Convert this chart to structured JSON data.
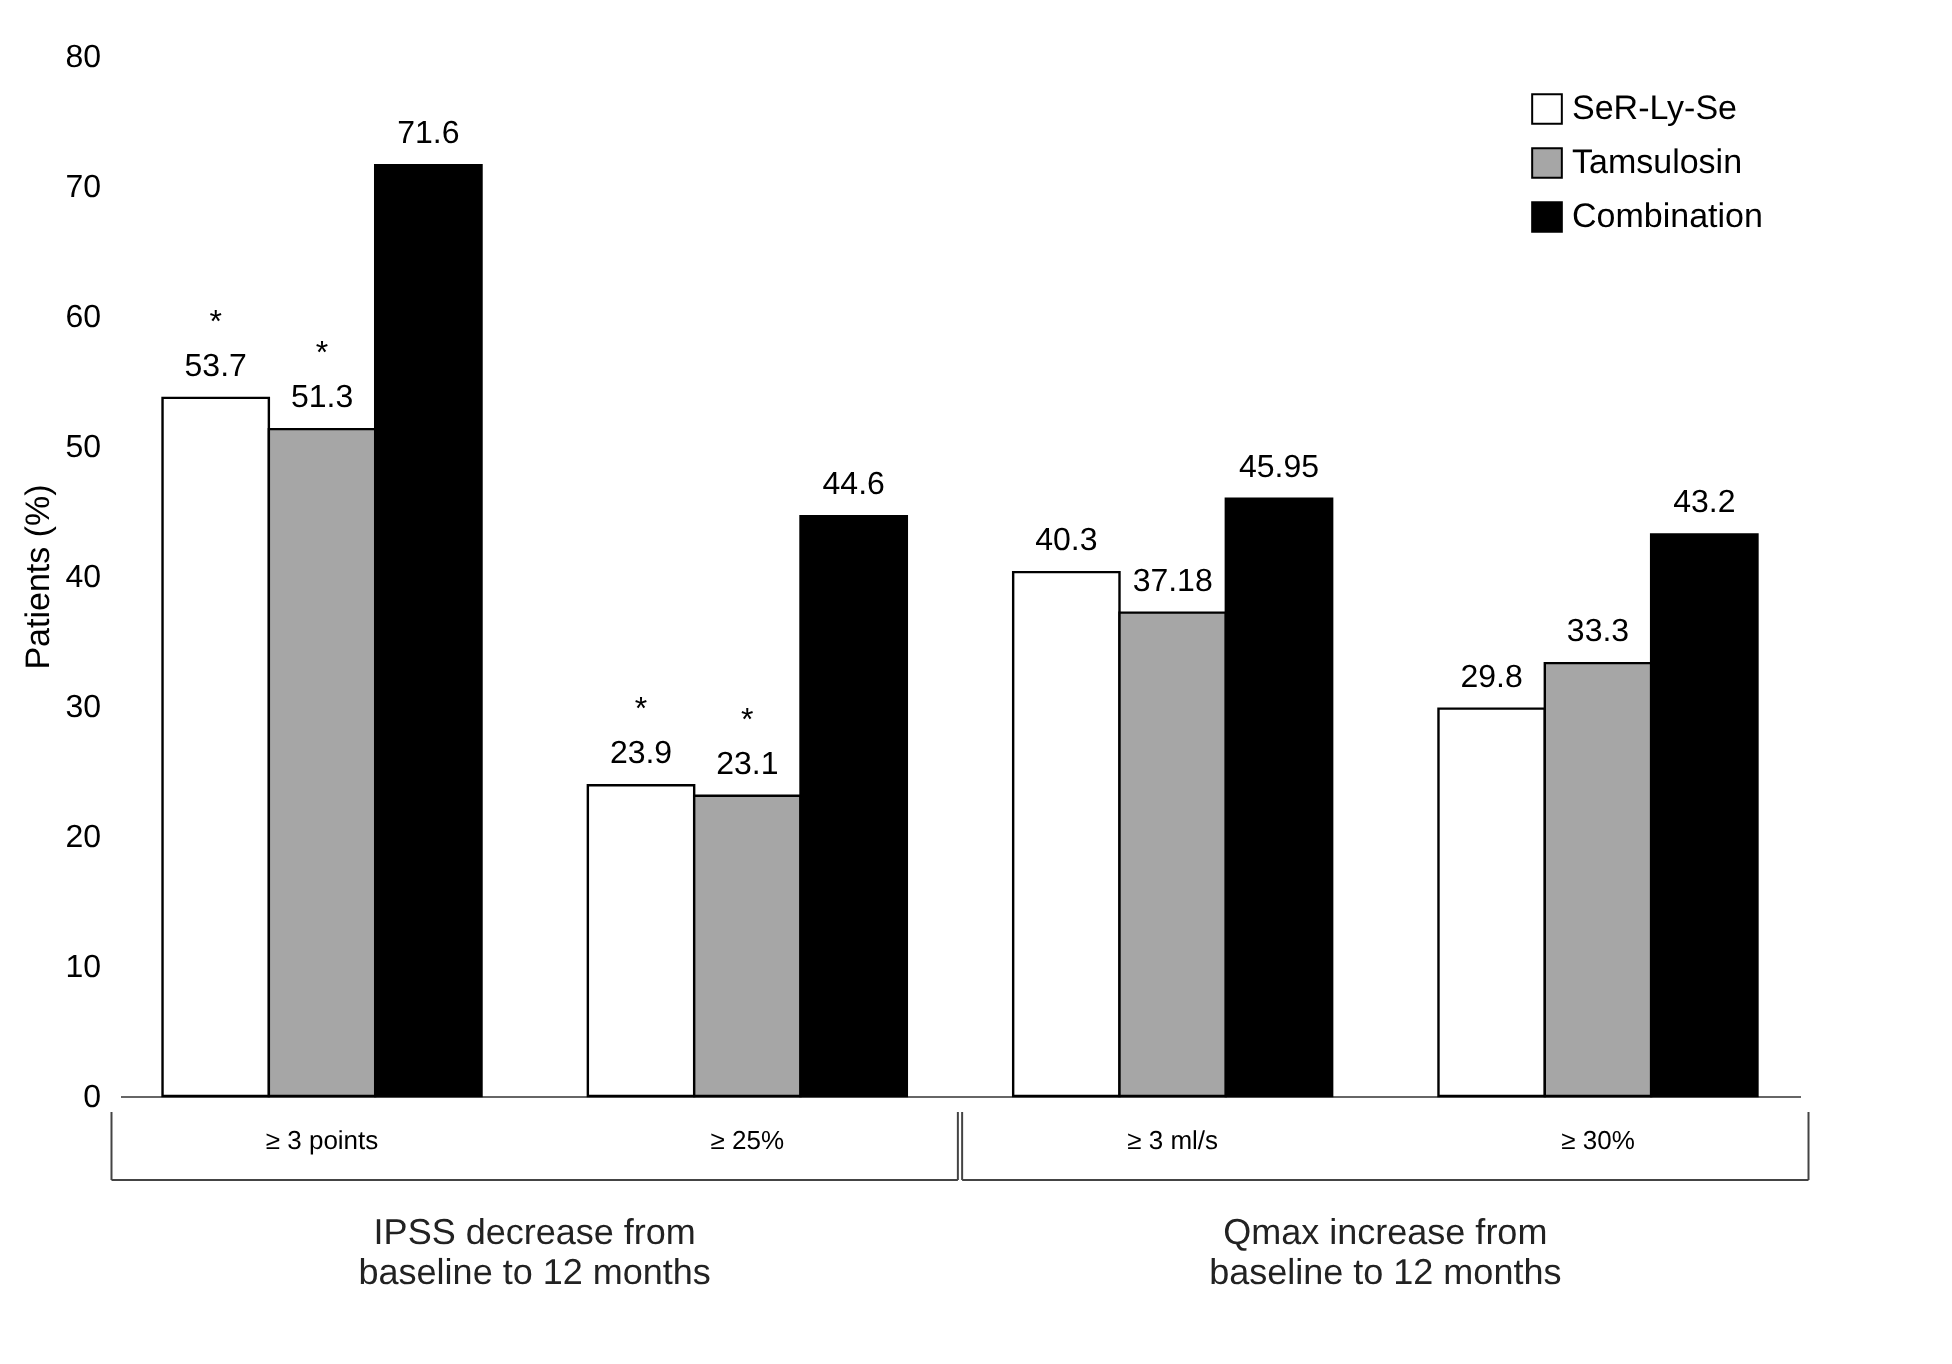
{
  "chart_data": {
    "type": "bar",
    "ylabel": "Patients (%)",
    "categories": [
      "≥ 3 points",
      "≥ 25%",
      "≥ 3 ml/s",
      "≥ 30%"
    ],
    "series": [
      {
        "name": "SeR-Ly-Se",
        "color": "#ffffff",
        "values": [
          53.7,
          23.9,
          40.3,
          29.8
        ],
        "value_labels": [
          "*\n53.7",
          "*\n23.9",
          "40.3",
          "29.8"
        ]
      },
      {
        "name": "Tamsulosin",
        "color": "#a6a6a6",
        "values": [
          51.3,
          23.1,
          37.18,
          33.3
        ],
        "value_labels": [
          "*\n51.3",
          "*\n23.1",
          "37.18",
          "33.3"
        ]
      },
      {
        "name": "Combination",
        "color": "#000000",
        "values": [
          71.6,
          44.6,
          45.95,
          43.2
        ],
        "value_labels": [
          "71.6",
          "44.6",
          "45.95",
          "43.2"
        ]
      }
    ],
    "ylim": [
      0,
      80
    ],
    "yticks": [
      0,
      10,
      20,
      30,
      40,
      50,
      60,
      70,
      80
    ],
    "grid": false,
    "legend": "top right",
    "annotations": [
      "IPSS decrease from\nbaseline to 12 months",
      "Qmax increase from\nbaseline to 12 months"
    ]
  }
}
